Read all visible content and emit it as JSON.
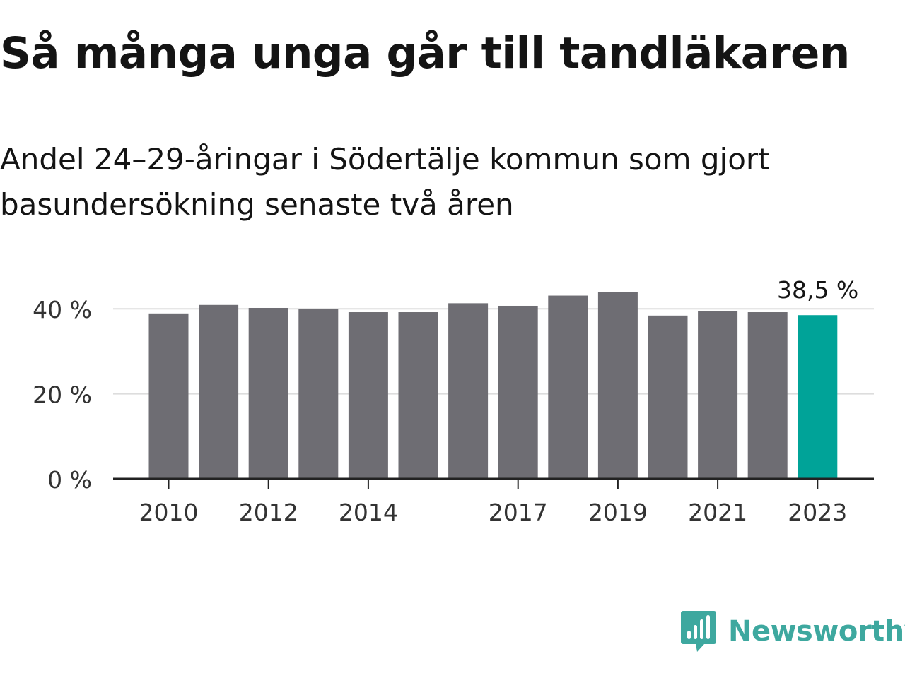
{
  "header": {
    "title": "Så många unga går till tandläkaren",
    "subtitle": "Andel 24–29-åringar i Södertälje kommun som gjort basundersökning senaste två åren"
  },
  "brand": {
    "name": "Newsworthy",
    "color": "#3ea89f"
  },
  "chart_data": {
    "type": "bar",
    "categories": [
      "2010",
      "2011",
      "2012",
      "2013",
      "2014",
      "2015",
      "2016",
      "2017",
      "2018",
      "2019",
      "2020",
      "2021",
      "2022",
      "2023"
    ],
    "values": [
      38.9,
      40.9,
      40.2,
      39.9,
      39.2,
      39.2,
      41.3,
      40.7,
      43.1,
      44.0,
      38.4,
      39.4,
      39.2,
      38.5
    ],
    "x_tick_labels": [
      "2010",
      "2012",
      "2014",
      "2017",
      "2019",
      "2021",
      "2023"
    ],
    "y_ticks": [
      0,
      20,
      40
    ],
    "y_tick_labels": [
      "0 %",
      "20 %",
      "40 %"
    ],
    "ylim": [
      0,
      44
    ],
    "data_labels": [
      {
        "category": "2023",
        "text": "38,5 %"
      }
    ],
    "highlight_category": "2023",
    "colors": {
      "bar": "#6e6d73",
      "highlight": "#00a398",
      "grid": "#dddddd",
      "axis": "#222222"
    },
    "grid": true,
    "legend": "none"
  }
}
